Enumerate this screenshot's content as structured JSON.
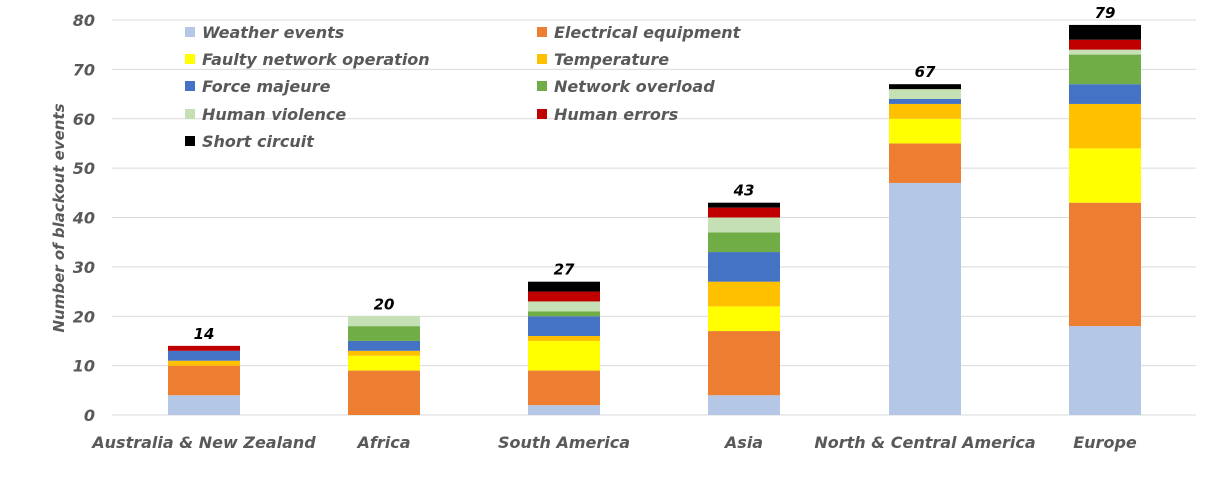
{
  "chart_data": {
    "type": "bar",
    "stacked": true,
    "ylabel": "Number of blackout events",
    "xlabel": "",
    "ylim": [
      0,
      80
    ],
    "yticks": [
      "0",
      "10",
      "20",
      "30",
      "40",
      "50",
      "60",
      "70",
      "80"
    ],
    "grid": true,
    "legend_position": "top-left",
    "categories": [
      "Australia & New Zealand",
      "Africa",
      "South America",
      "Asia",
      "North & Central America",
      "Europe"
    ],
    "totals": [
      "14",
      "20",
      "27",
      "43",
      "67",
      "79"
    ],
    "series": [
      {
        "name": "Weather events",
        "color": "#b4c7e7",
        "values": [
          4,
          0,
          2,
          4,
          47,
          18
        ]
      },
      {
        "name": "Electrical equipment",
        "color": "#ed7d31",
        "values": [
          6,
          9,
          7,
          13,
          8,
          25
        ]
      },
      {
        "name": "Faulty network operation",
        "color": "#ffff00",
        "values": [
          0,
          3,
          6,
          5,
          5,
          11
        ]
      },
      {
        "name": "Temperature",
        "color": "#ffc000",
        "values": [
          1,
          1,
          1,
          5,
          3,
          9
        ]
      },
      {
        "name": "Force majeure",
        "color": "#4472c4",
        "values": [
          2,
          2,
          4,
          6,
          1,
          4
        ]
      },
      {
        "name": "Network overload",
        "color": "#70ad47",
        "values": [
          0,
          3,
          1,
          4,
          0,
          6
        ]
      },
      {
        "name": "Human violence",
        "color": "#c5e0b4",
        "values": [
          0,
          2,
          2,
          3,
          2,
          1
        ]
      },
      {
        "name": "Human errors",
        "color": "#c00000",
        "values": [
          1,
          0,
          2,
          2,
          0,
          2
        ]
      },
      {
        "name": "Short circuit",
        "color": "#000000",
        "values": [
          0,
          0,
          2,
          1,
          1,
          3
        ]
      }
    ]
  }
}
